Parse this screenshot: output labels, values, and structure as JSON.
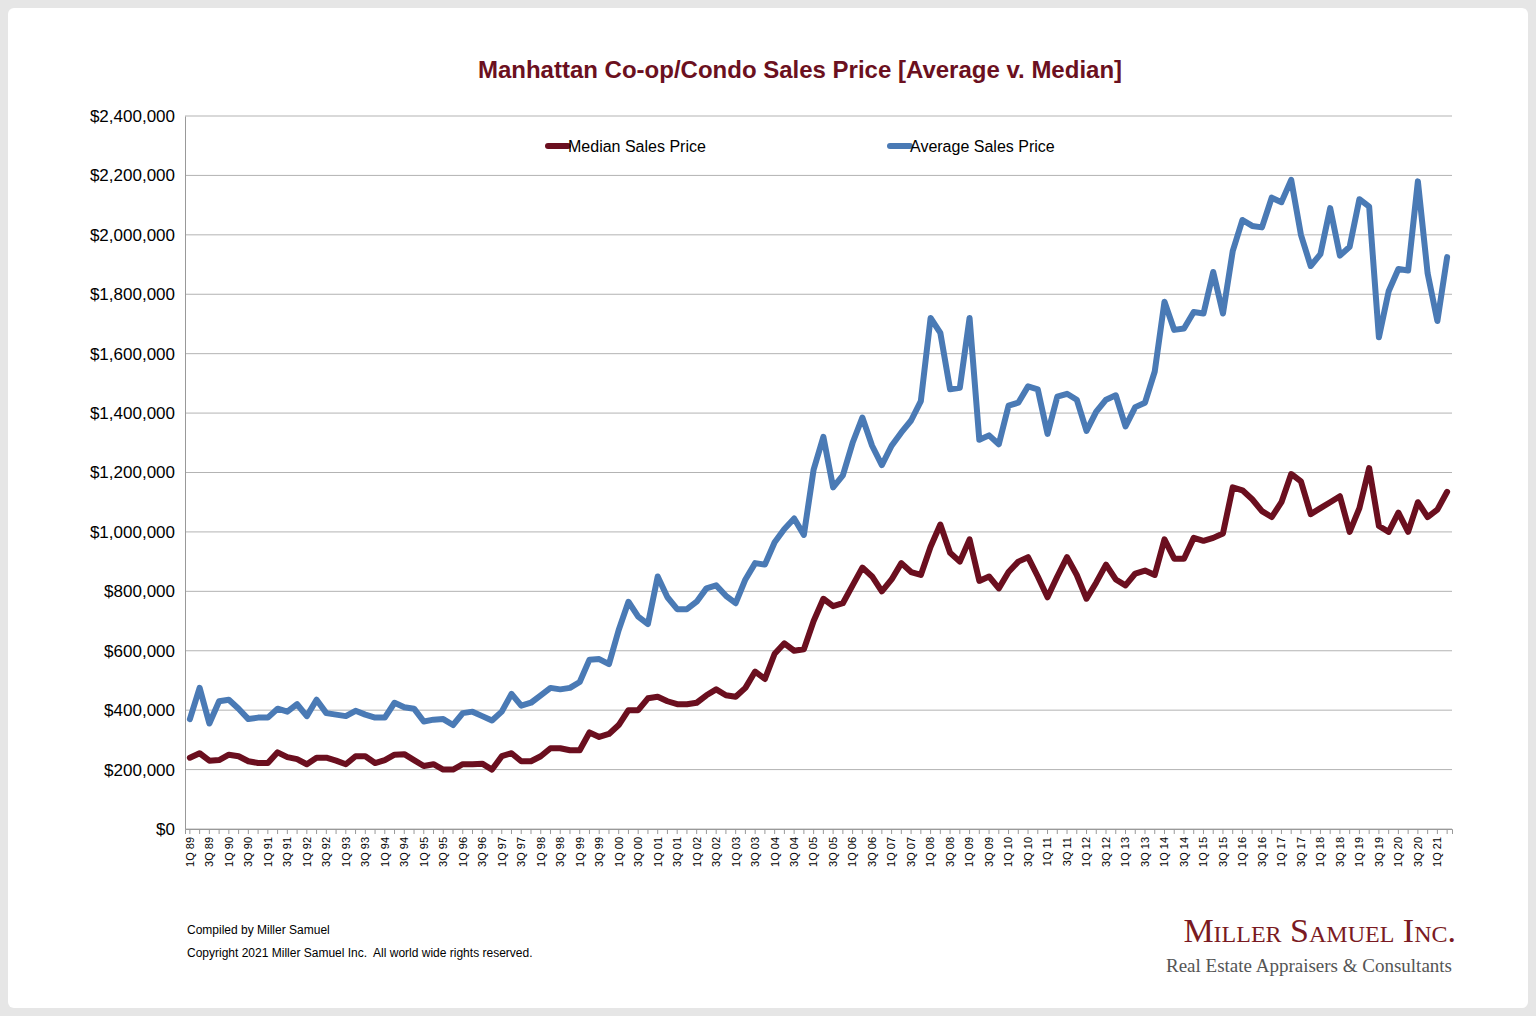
{
  "chart_data": {
    "type": "line",
    "title": "Manhattan Co-op/Condo Sales Price [Average v. Median]",
    "annotations": [
      "Compiled by Miller Samuel",
      "Copyright 2021 Miller Samuel Inc.  All world wide rights reserved.",
      "Miller Samuel Inc.",
      "Real Estate Appraisers & Consultants"
    ],
    "categories": [
      "1Q 89",
      null,
      "3Q 89",
      null,
      "1Q 90",
      null,
      "3Q 90",
      null,
      "1Q 91",
      null,
      "3Q 91",
      null,
      "1Q 92",
      null,
      "3Q 92",
      null,
      "1Q 93",
      null,
      "3Q 93",
      null,
      "1Q 94",
      null,
      "3Q 94",
      null,
      "1Q 95",
      null,
      "3Q 95",
      null,
      "1Q 96",
      null,
      "3Q 96",
      null,
      "1Q 97",
      null,
      "3Q 97",
      null,
      "1Q 98",
      null,
      "3Q 98",
      null,
      "1Q 99",
      null,
      "3Q 99",
      null,
      "1Q 00",
      null,
      "3Q 00",
      null,
      "1Q 01",
      null,
      "3Q 01",
      null,
      "1Q 02",
      null,
      "3Q 02",
      null,
      "1Q 03",
      null,
      "3Q 03",
      null,
      "1Q 04",
      null,
      "3Q 04",
      null,
      "1Q 05",
      null,
      "3Q 05",
      null,
      "1Q 06",
      null,
      "3Q 06",
      null,
      "1Q 07",
      null,
      "3Q 07",
      null,
      "1Q 08",
      null,
      "3Q 08",
      null,
      "1Q 09",
      null,
      "3Q 09",
      null,
      "1Q 10",
      null,
      "3Q 10",
      null,
      "1Q 11",
      null,
      "3Q 11",
      null,
      "1Q 12",
      null,
      "3Q 12",
      null,
      "1Q 13",
      null,
      "3Q 13",
      null,
      "1Q 14",
      null,
      "3Q 14",
      null,
      "1Q 15",
      null,
      "3Q 15",
      null,
      "1Q 16",
      null,
      "3Q 16",
      null,
      "1Q 17",
      null,
      "3Q 17",
      null,
      "1Q 18",
      null,
      "3Q 18",
      null,
      "1Q 19",
      null,
      "3Q 19",
      null,
      "1Q 20",
      null,
      "3Q 20",
      null,
      "1Q 21",
      null
    ],
    "series": [
      {
        "name": "Median Sales Price",
        "color": "#6b0f1f",
        "values": [
          240000,
          255000,
          230000,
          232000,
          250000,
          245000,
          228000,
          222000,
          222000,
          258000,
          242000,
          235000,
          218000,
          240000,
          240000,
          230000,
          218000,
          245000,
          245000,
          222000,
          232000,
          250000,
          252000,
          232000,
          212000,
          218000,
          200000,
          200000,
          218000,
          218000,
          220000,
          200000,
          245000,
          255000,
          228000,
          228000,
          245000,
          272000,
          272000,
          265000,
          265000,
          325000,
          310000,
          320000,
          350000,
          400000,
          400000,
          440000,
          445000,
          430000,
          420000,
          420000,
          425000,
          450000,
          470000,
          450000,
          445000,
          475000,
          530000,
          505000,
          590000,
          625000,
          600000,
          605000,
          700000,
          775000,
          750000,
          760000,
          820000,
          880000,
          850000,
          800000,
          840000,
          895000,
          865000,
          855000,
          950000,
          1025000,
          930000,
          900000,
          975000,
          835000,
          850000,
          810000,
          865000,
          900000,
          915000,
          850000,
          780000,
          850000,
          915000,
          855000,
          775000,
          830000,
          890000,
          840000,
          820000,
          860000,
          870000,
          855000,
          975000,
          910000,
          910000,
          980000,
          970000,
          980000,
          995000,
          1150000,
          1140000,
          1110000,
          1070000,
          1050000,
          1100000,
          1195000,
          1170000,
          1060000,
          1080000,
          1100000,
          1120000,
          1000000,
          1080000,
          1215000,
          1020000,
          1000000,
          1065000,
          1000000,
          1100000,
          1050000,
          1075000,
          1135000
        ]
      },
      {
        "name": "Average Sales Price",
        "color": "#4a7ab5",
        "values": [
          370000,
          475000,
          355000,
          430000,
          435000,
          405000,
          370000,
          375000,
          375000,
          405000,
          395000,
          420000,
          380000,
          435000,
          390000,
          385000,
          380000,
          398000,
          385000,
          375000,
          375000,
          425000,
          410000,
          405000,
          362000,
          368000,
          370000,
          350000,
          390000,
          395000,
          380000,
          365000,
          395000,
          455000,
          415000,
          425000,
          450000,
          475000,
          470000,
          475000,
          495000,
          570000,
          572000,
          555000,
          670000,
          765000,
          715000,
          690000,
          850000,
          780000,
          740000,
          740000,
          765000,
          810000,
          820000,
          785000,
          760000,
          840000,
          895000,
          890000,
          965000,
          1010000,
          1045000,
          990000,
          1210000,
          1320000,
          1150000,
          1190000,
          1300000,
          1385000,
          1290000,
          1225000,
          1290000,
          1335000,
          1375000,
          1440000,
          1720000,
          1670000,
          1480000,
          1485000,
          1720000,
          1310000,
          1325000,
          1295000,
          1425000,
          1435000,
          1490000,
          1480000,
          1330000,
          1455000,
          1465000,
          1445000,
          1340000,
          1405000,
          1445000,
          1460000,
          1355000,
          1420000,
          1435000,
          1540000,
          1775000,
          1680000,
          1685000,
          1740000,
          1735000,
          1875000,
          1735000,
          1945000,
          2050000,
          2030000,
          2025000,
          2125000,
          2110000,
          2185000,
          2000000,
          1895000,
          1935000,
          2090000,
          1930000,
          1960000,
          2120000,
          2095000,
          1655000,
          1810000,
          1885000,
          1880000,
          2180000,
          1870000,
          1710000,
          1925000
        ]
      }
    ],
    "ylim": [
      0,
      2400000
    ],
    "yticks": [
      {
        "value": 0,
        "label": "$0"
      },
      {
        "value": 200000,
        "label": "$200,000"
      },
      {
        "value": 400000,
        "label": "$400,000"
      },
      {
        "value": 600000,
        "label": "$600,000"
      },
      {
        "value": 800000,
        "label": "$800,000"
      },
      {
        "value": 1000000,
        "label": "$1,000,000"
      },
      {
        "value": 1200000,
        "label": "$1,200,000"
      },
      {
        "value": 1400000,
        "label": "$1,400,000"
      },
      {
        "value": 1600000,
        "label": "$1,600,000"
      },
      {
        "value": 1800000,
        "label": "$1,800,000"
      },
      {
        "value": 2000000,
        "label": "$2,000,000"
      },
      {
        "value": 2200000,
        "label": "$2,200,000"
      },
      {
        "value": 2400000,
        "label": "$2,400,000"
      }
    ],
    "grid": true,
    "legend": "top"
  }
}
